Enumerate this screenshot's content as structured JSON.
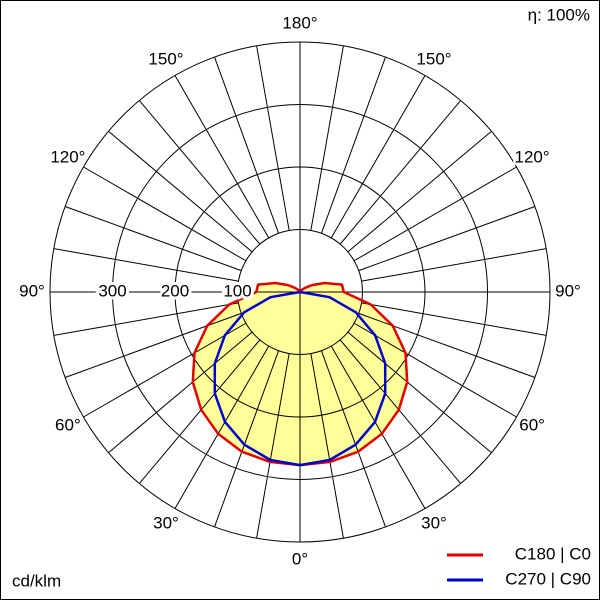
{
  "chart_data": {
    "type": "polar",
    "efficiency_label": "η: 100%",
    "unit": "cd/klm",
    "angles": [
      0,
      10,
      20,
      30,
      40,
      50,
      60,
      70,
      80,
      90,
      100,
      110,
      120,
      130,
      140,
      150,
      160,
      170,
      180
    ],
    "angle_ticks": [
      {
        "value": 0,
        "label": "0°"
      },
      {
        "value": 30,
        "label": "30°"
      },
      {
        "value": 60,
        "label": "60°"
      },
      {
        "value": 90,
        "label": "90°"
      },
      {
        "value": 120,
        "label": "120°"
      },
      {
        "value": 150,
        "label": "150°"
      },
      {
        "value": 180,
        "label": "180°"
      }
    ],
    "rlim": [
      0,
      400
    ],
    "rticks": [
      100,
      200,
      300
    ],
    "fill_color": "#ffff99",
    "series": [
      {
        "name": "C180 | C0",
        "color": "#e00000",
        "values": [
          277,
          276,
          272,
          262,
          246,
          224,
          195,
          158,
          115,
          70,
          68,
          42,
          22,
          10,
          4,
          0,
          0,
          0,
          0
        ]
      },
      {
        "name": "C270 | C90",
        "color": "#0000cc",
        "values": [
          277,
          273,
          260,
          240,
          212,
          178,
          139,
          95,
          48,
          0,
          0,
          0,
          0,
          0,
          0,
          0,
          0,
          0,
          0
        ]
      }
    ]
  }
}
